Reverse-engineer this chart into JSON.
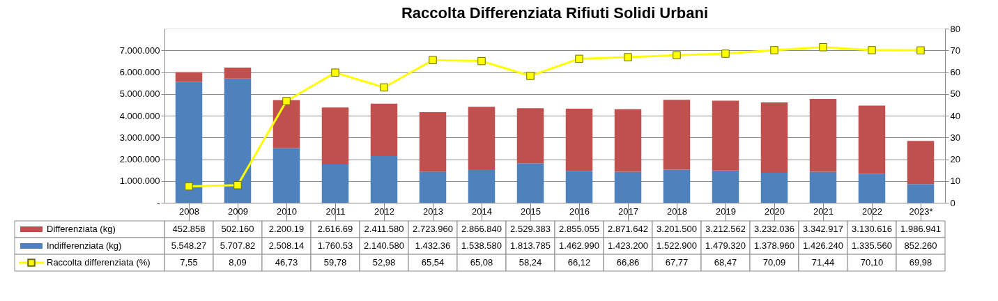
{
  "chart_data": {
    "type": "bar",
    "title": "Raccolta Differenziata Rifiuti Solidi Urbani",
    "stacked": true,
    "grid": "y",
    "legend": "bottom",
    "marker": "square",
    "categories": [
      "2008",
      "2009",
      "2010",
      "2011",
      "2012",
      "2013",
      "2014",
      "2015",
      "2016",
      "2017",
      "2018",
      "2019",
      "2020",
      "2021",
      "2022",
      "2023*"
    ],
    "ylim": [
      0,
      8000000
    ],
    "yticks": [
      {
        "value": 0,
        "label": "-"
      },
      {
        "value": 1000000,
        "label": "1.000.000"
      },
      {
        "value": 2000000,
        "label": "2.000.000"
      },
      {
        "value": 3000000,
        "label": "3.000.000"
      },
      {
        "value": 4000000,
        "label": "4.000.000"
      },
      {
        "value": 5000000,
        "label": "5.000.000"
      },
      {
        "value": 6000000,
        "label": "6.000.000"
      },
      {
        "value": 7000000,
        "label": "7.000.000"
      }
    ],
    "y2lim": [
      0,
      80
    ],
    "y2ticks": [
      0,
      10,
      20,
      30,
      40,
      50,
      60,
      70,
      80
    ],
    "series": [
      {
        "name": "Indifferenziata (kg)",
        "color": "#4f81bd",
        "values": [
          5548270,
          5707820,
          2508140,
          1760530,
          2140580,
          1432360,
          1538580,
          1813785,
          1462990,
          1423200,
          1522900,
          1479320,
          1378960,
          1426240,
          1335560,
          852260
        ],
        "value_labels": [
          "5.548.27",
          "5.707.82",
          "2.508.14",
          "1.760.53",
          "2.140.580",
          "1.432.36",
          "1.538.580",
          "1.813.785",
          "1.462.990",
          "1.423.200",
          "1.522.900",
          "1.479.320",
          "1.378.960",
          "1.426.240",
          "1.335.560",
          "852.260"
        ]
      },
      {
        "name": "Differenziata (kg)",
        "color": "#c0504d",
        "values": [
          452858,
          502160,
          2200190,
          2616690,
          2411580,
          2723960,
          2866840,
          2529383,
          2855055,
          2871642,
          3201500,
          3212562,
          3232036,
          3342917,
          3130616,
          1986941
        ],
        "value_labels": [
          "452.858",
          "502.160",
          "2.200.19",
          "2.616.69",
          "2.411.580",
          "2.723.960",
          "2.866.840",
          "2.529.383",
          "2.855.055",
          "2.871.642",
          "3.201.500",
          "3.212.562",
          "3.232.036",
          "3.342.917",
          "3.130.616",
          "1.986.941"
        ]
      },
      {
        "name": "Raccolta differenziata (%)",
        "type": "line",
        "axis": "y2",
        "color": "#ffff00",
        "values": [
          7.55,
          8.09,
          46.73,
          59.78,
          52.98,
          65.54,
          65.08,
          58.24,
          66.12,
          66.86,
          67.77,
          68.47,
          70.09,
          71.44,
          70.1,
          69.98
        ],
        "value_labels": [
          "7,55",
          "8,09",
          "46,73",
          "59,78",
          "52,98",
          "65,54",
          "65,08",
          "58,24",
          "66,12",
          "66,86",
          "67,77",
          "68,47",
          "70,09",
          "71,44",
          "70,10",
          "69,98"
        ]
      }
    ]
  }
}
